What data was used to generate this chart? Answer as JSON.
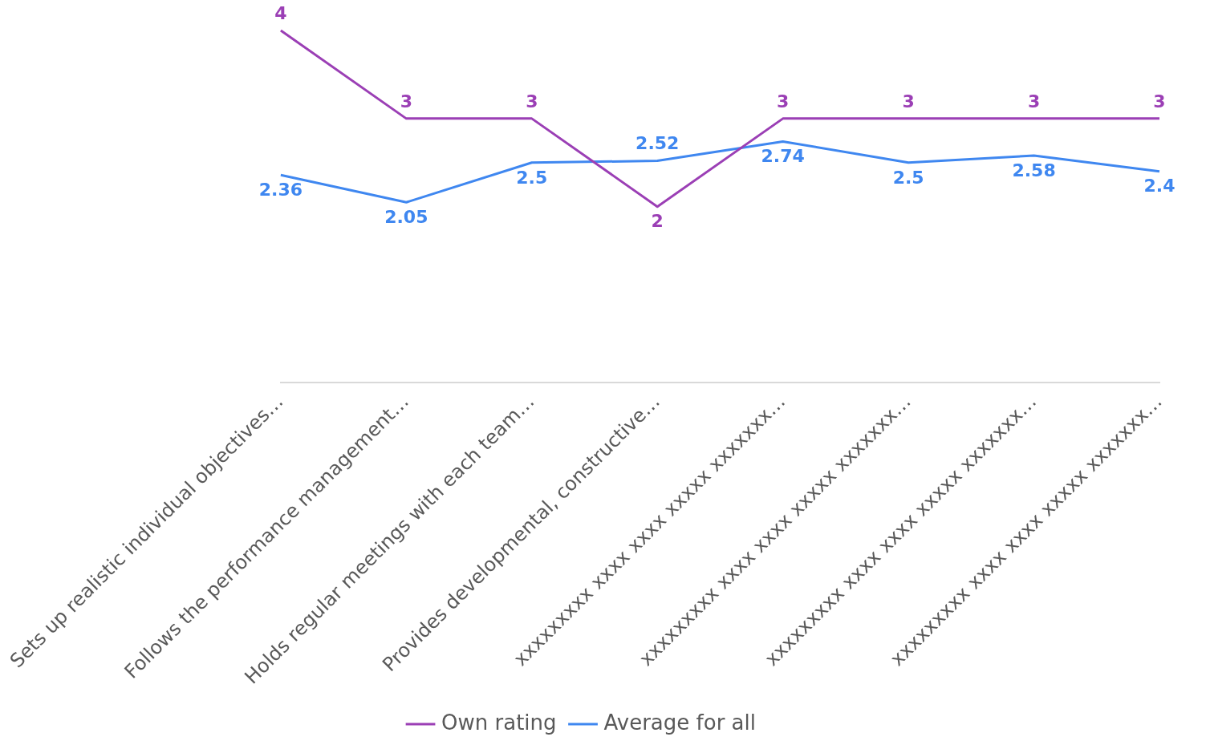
{
  "chart_data": {
    "type": "line",
    "categories": [
      "Sets up realistic individual objectives…",
      "Follows the performance management…",
      "Holds regular meetings with each team…",
      "Provides developmental, constructive…",
      "xxxxxxxxx xxxx xxxx xxxxx xxxxxxx…",
      "xxxxxxxxx xxxx xxxx xxxxx xxxxxxx…",
      "xxxxxxxxx xxxx xxxx xxxxx xxxxxxx…",
      "xxxxxxxxx xxxx xxxx xxxxx xxxxxxx…"
    ],
    "series": [
      {
        "name": "Own rating",
        "color": "#9b3fb5",
        "values": [
          4,
          3,
          3,
          2,
          3,
          3,
          3,
          3
        ]
      },
      {
        "name": "Average for all",
        "color": "#3f87f0",
        "values": [
          2.36,
          2.05,
          2.5,
          2.52,
          2.74,
          2.5,
          2.58,
          2.4
        ]
      }
    ],
    "data_labels": true,
    "grid": false,
    "legend": "bottom",
    "line_style": "solid"
  }
}
